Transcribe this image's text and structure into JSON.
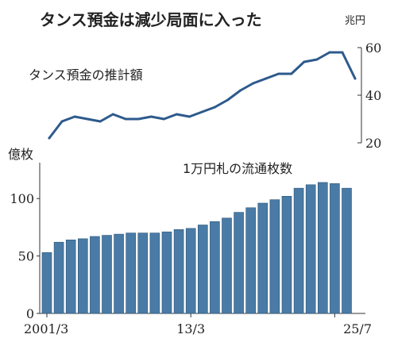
{
  "title": "タンス預金は減少局面に入った",
  "chart_data": [
    {
      "type": "line",
      "title": "タンス預金の推計額",
      "unit_label": "兆円",
      "ylim": [
        20,
        60
      ],
      "yticks": [
        20,
        40,
        60
      ],
      "series": [
        {
          "values": [
            22,
            29,
            31,
            30,
            29,
            32,
            30,
            30,
            31,
            30,
            32,
            31,
            33,
            35,
            38,
            42,
            45,
            47,
            49,
            49,
            54,
            55,
            58,
            58,
            47
          ]
        }
      ]
    },
    {
      "type": "bar",
      "title": "1万円札の流通枚数",
      "unit_label": "億枚",
      "ylim": [
        0,
        125
      ],
      "yticks": [
        0,
        50,
        100
      ],
      "x_tick_labels": [
        "2001/3",
        "13/3",
        "25/7"
      ],
      "x_tick_index": [
        0,
        12,
        24
      ],
      "color": "#4a7ba6",
      "series": [
        {
          "values": [
            53,
            62,
            64,
            65,
            67,
            68,
            69,
            70,
            70,
            70,
            71,
            73,
            74,
            77,
            80,
            83,
            88,
            92,
            96,
            99,
            102,
            109,
            112,
            114,
            113,
            109
          ]
        }
      ]
    }
  ]
}
